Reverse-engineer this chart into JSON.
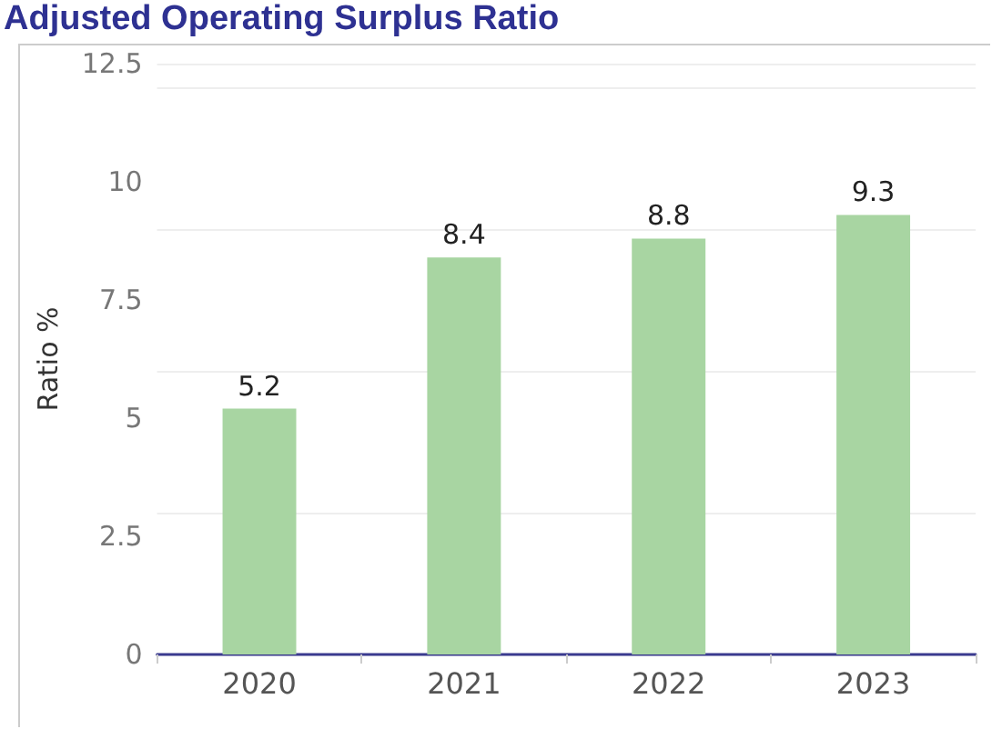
{
  "chart_data": {
    "type": "bar",
    "title": "Adjusted Operating Surplus Ratio",
    "ylabel": "Ratio %",
    "categories": [
      "2020",
      "2021",
      "2022",
      "2023"
    ],
    "values": [
      5.2,
      8.4,
      8.8,
      9.3
    ],
    "color": "#a8d5a2",
    "ylim": [
      0,
      12.5
    ],
    "yticks": [
      0,
      2.5,
      5,
      7.5,
      10,
      12.5
    ],
    "grid": "y",
    "data_labels": true
  }
}
